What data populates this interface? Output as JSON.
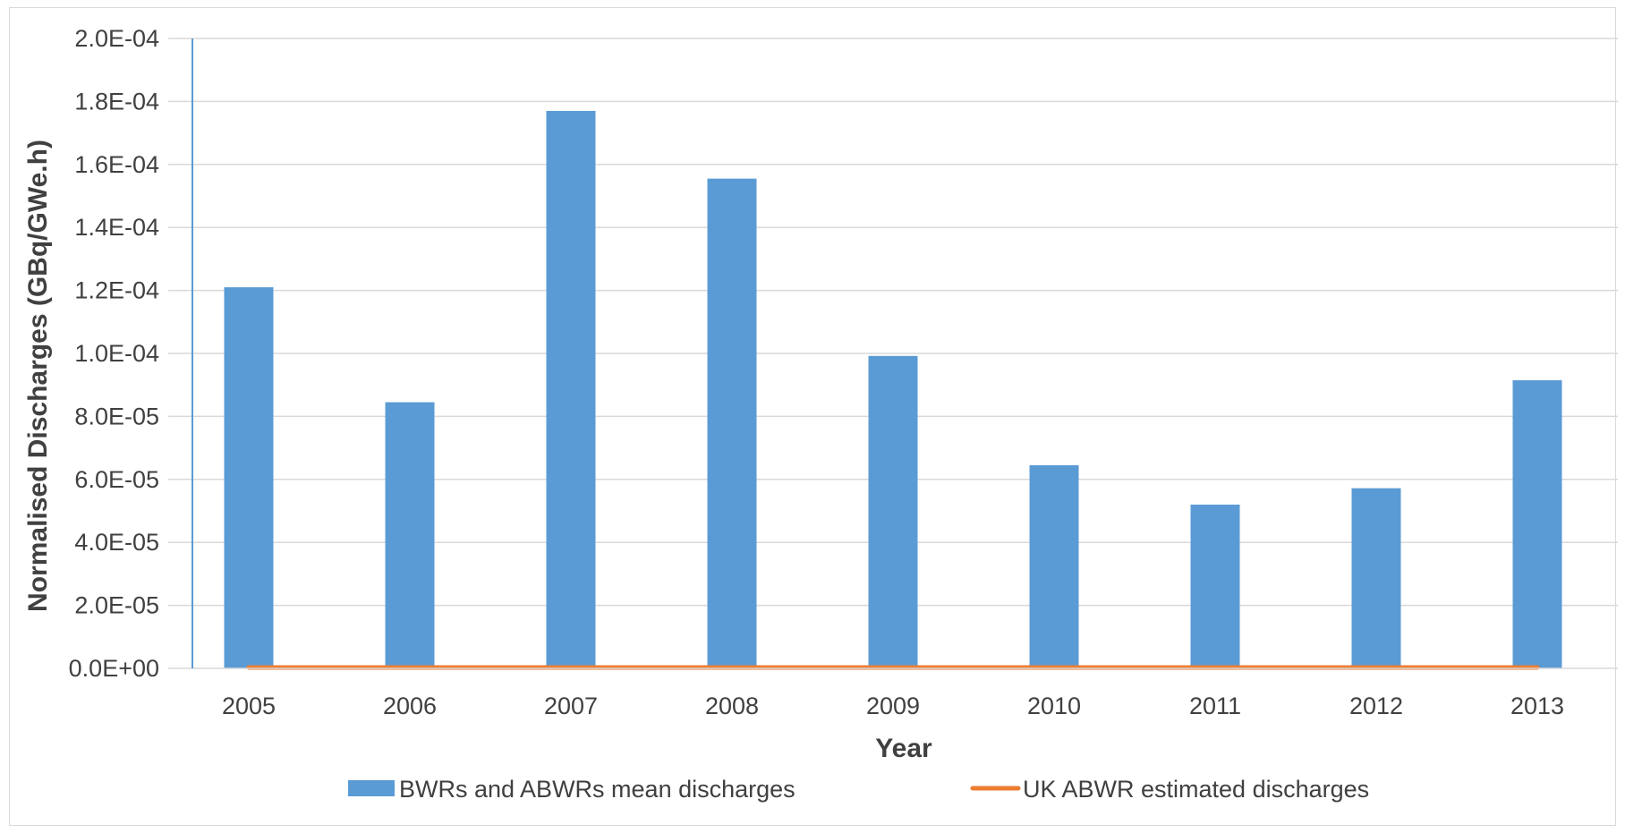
{
  "chart_data": {
    "type": "bar",
    "title": "",
    "xlabel": "Year",
    "ylabel": "Normalised Discharges (GBq/GWe.h)",
    "categories": [
      "2005",
      "2006",
      "2007",
      "2008",
      "2009",
      "2010",
      "2011",
      "2012",
      "2013"
    ],
    "series": [
      {
        "name": "BWRs and ABWRs mean discharges",
        "kind": "bar",
        "color": "#5b9bd5",
        "values": [
          0.000121,
          8.45e-05,
          0.000177,
          0.0001555,
          9.92e-05,
          6.45e-05,
          5.2e-05,
          5.72e-05,
          9.15e-05
        ]
      },
      {
        "name": "UK ABWR estimated discharges",
        "kind": "line",
        "color": "#ed7d31",
        "values": [
          3e-07,
          3e-07,
          3e-07,
          3e-07,
          3e-07,
          3e-07,
          3e-07,
          3e-07,
          3e-07
        ]
      }
    ],
    "ylim": [
      0,
      0.0002
    ],
    "yticks": [
      0,
      2e-05,
      4e-05,
      6e-05,
      8e-05,
      0.0001,
      0.00012,
      0.00014,
      0.00016,
      0.00018,
      0.0002
    ],
    "ytick_labels": [
      "0.0E+00",
      "2.0E-05",
      "4.0E-05",
      "6.0E-05",
      "8.0E-05",
      "1.0E-04",
      "1.2E-04",
      "1.4E-04",
      "1.6E-04",
      "1.8E-04",
      "2.0E-04"
    ],
    "grid": true,
    "legend_position": "bottom",
    "colors": {
      "gridline": "#d9d9d9",
      "axis": "#5b9bd5",
      "text": "#404040"
    }
  }
}
